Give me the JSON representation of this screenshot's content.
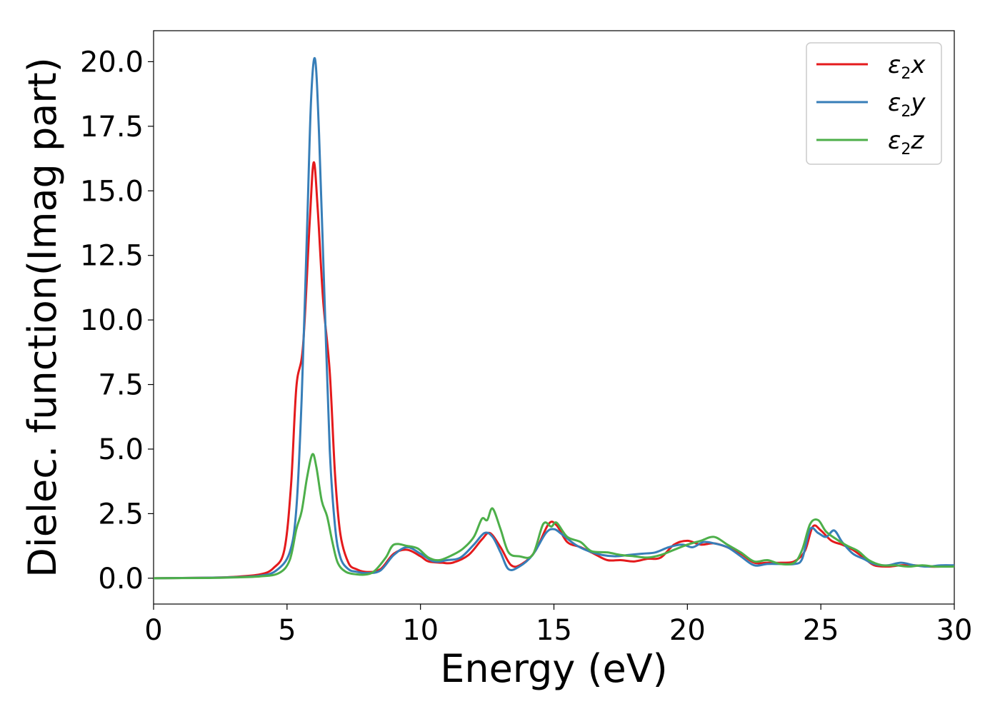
{
  "chart_data": {
    "type": "line",
    "xlabel": "Energy (eV)",
    "ylabel": "Dielec. function(Imag part)",
    "xlim": [
      0,
      30
    ],
    "ylim": [
      -1.0,
      21.2
    ],
    "xticks": [
      "0",
      "5",
      "10",
      "15",
      "20",
      "25",
      "30"
    ],
    "xtick_values": [
      0,
      5,
      10,
      15,
      20,
      25,
      30
    ],
    "yticks": [
      "0.0",
      "2.5",
      "5.0",
      "7.5",
      "10.0",
      "12.5",
      "15.0",
      "17.5",
      "20.0"
    ],
    "ytick_values": [
      0,
      2.5,
      5.0,
      7.5,
      10.0,
      12.5,
      15.0,
      17.5,
      20.0
    ],
    "grid": false,
    "legend_position": "top-right",
    "series": [
      {
        "name": "ε2x",
        "legend_main": "ε",
        "legend_sub": "2",
        "legend_var": "x",
        "color": "#e41a1c",
        "points": [
          [
            0,
            0
          ],
          [
            2,
            0.02
          ],
          [
            3,
            0.05
          ],
          [
            4,
            0.15
          ],
          [
            4.5,
            0.4
          ],
          [
            4.9,
            1.1
          ],
          [
            5.15,
            3.6
          ],
          [
            5.35,
            7.4
          ],
          [
            5.6,
            9.0
          ],
          [
            5.85,
            13.8
          ],
          [
            6.0,
            16.1
          ],
          [
            6.15,
            14.3
          ],
          [
            6.35,
            10.8
          ],
          [
            6.6,
            8.0
          ],
          [
            6.8,
            4.0
          ],
          [
            7.0,
            1.7
          ],
          [
            7.3,
            0.6
          ],
          [
            7.6,
            0.35
          ],
          [
            8.0,
            0.24
          ],
          [
            8.5,
            0.35
          ],
          [
            9.0,
            0.95
          ],
          [
            9.5,
            1.1
          ],
          [
            10.0,
            0.85
          ],
          [
            10.3,
            0.65
          ],
          [
            10.8,
            0.6
          ],
          [
            11.2,
            0.6
          ],
          [
            11.8,
            0.9
          ],
          [
            12.3,
            1.5
          ],
          [
            12.6,
            1.75
          ],
          [
            13.0,
            1.2
          ],
          [
            13.4,
            0.5
          ],
          [
            13.8,
            0.55
          ],
          [
            14.3,
            1.05
          ],
          [
            14.8,
            2.1
          ],
          [
            15.1,
            2.05
          ],
          [
            15.5,
            1.4
          ],
          [
            16.0,
            1.2
          ],
          [
            16.5,
            0.95
          ],
          [
            17.0,
            0.7
          ],
          [
            17.5,
            0.7
          ],
          [
            18.0,
            0.65
          ],
          [
            18.5,
            0.75
          ],
          [
            19.0,
            0.8
          ],
          [
            19.5,
            1.3
          ],
          [
            20.0,
            1.45
          ],
          [
            20.5,
            1.3
          ],
          [
            21.0,
            1.35
          ],
          [
            21.5,
            1.2
          ],
          [
            22.0,
            0.95
          ],
          [
            22.5,
            0.6
          ],
          [
            23.0,
            0.6
          ],
          [
            23.5,
            0.6
          ],
          [
            24.0,
            0.65
          ],
          [
            24.4,
            1.05
          ],
          [
            24.7,
            2.0
          ],
          [
            25.0,
            1.85
          ],
          [
            25.4,
            1.45
          ],
          [
            25.8,
            1.3
          ],
          [
            26.2,
            1.1
          ],
          [
            26.6,
            0.8
          ],
          [
            27.0,
            0.5
          ],
          [
            27.5,
            0.45
          ],
          [
            28.0,
            0.5
          ],
          [
            28.5,
            0.5
          ],
          [
            29.0,
            0.45
          ],
          [
            29.5,
            0.45
          ],
          [
            30,
            0.5
          ]
        ]
      },
      {
        "name": "ε2y",
        "legend_main": "ε",
        "legend_sub": "2",
        "legend_var": "y",
        "color": "#377eb8",
        "points": [
          [
            0,
            0
          ],
          [
            2,
            0.02
          ],
          [
            3,
            0.04
          ],
          [
            4,
            0.1
          ],
          [
            4.6,
            0.3
          ],
          [
            5.1,
            1.0
          ],
          [
            5.35,
            2.7
          ],
          [
            5.55,
            7.0
          ],
          [
            5.75,
            13.5
          ],
          [
            5.9,
            18.5
          ],
          [
            6.05,
            20.1
          ],
          [
            6.2,
            17.2
          ],
          [
            6.4,
            11.0
          ],
          [
            6.6,
            5.0
          ],
          [
            6.8,
            2.0
          ],
          [
            7.0,
            0.8
          ],
          [
            7.3,
            0.35
          ],
          [
            7.6,
            0.25
          ],
          [
            8.0,
            0.2
          ],
          [
            8.5,
            0.3
          ],
          [
            9.0,
            0.9
          ],
          [
            9.5,
            1.2
          ],
          [
            10.0,
            0.95
          ],
          [
            10.5,
            0.65
          ],
          [
            11.0,
            0.7
          ],
          [
            11.5,
            0.8
          ],
          [
            12.0,
            1.3
          ],
          [
            12.4,
            1.75
          ],
          [
            12.7,
            1.6
          ],
          [
            13.0,
            1.0
          ],
          [
            13.3,
            0.35
          ],
          [
            13.7,
            0.45
          ],
          [
            14.2,
            0.9
          ],
          [
            14.7,
            1.75
          ],
          [
            15.0,
            1.9
          ],
          [
            15.3,
            1.7
          ],
          [
            15.8,
            1.3
          ],
          [
            16.3,
            1.05
          ],
          [
            16.8,
            0.9
          ],
          [
            17.3,
            0.85
          ],
          [
            17.8,
            0.9
          ],
          [
            18.3,
            0.95
          ],
          [
            18.8,
            1.0
          ],
          [
            19.3,
            1.2
          ],
          [
            19.8,
            1.3
          ],
          [
            20.2,
            1.2
          ],
          [
            20.6,
            1.4
          ],
          [
            21.0,
            1.35
          ],
          [
            21.5,
            1.2
          ],
          [
            22.0,
            0.85
          ],
          [
            22.5,
            0.5
          ],
          [
            23.0,
            0.55
          ],
          [
            23.5,
            0.55
          ],
          [
            24.0,
            0.55
          ],
          [
            24.3,
            0.75
          ],
          [
            24.6,
            1.9
          ],
          [
            24.9,
            1.75
          ],
          [
            25.2,
            1.6
          ],
          [
            25.5,
            1.85
          ],
          [
            25.8,
            1.4
          ],
          [
            26.2,
            0.95
          ],
          [
            26.6,
            0.75
          ],
          [
            27.0,
            0.55
          ],
          [
            27.5,
            0.5
          ],
          [
            28.0,
            0.6
          ],
          [
            28.5,
            0.5
          ],
          [
            29.0,
            0.45
          ],
          [
            29.5,
            0.5
          ],
          [
            30,
            0.5
          ]
        ]
      },
      {
        "name": "ε2z",
        "legend_main": "ε",
        "legend_sub": "2",
        "legend_var": "z",
        "color": "#4daf4a",
        "points": [
          [
            0,
            0
          ],
          [
            2,
            0.01
          ],
          [
            3,
            0.03
          ],
          [
            4,
            0.07
          ],
          [
            4.7,
            0.2
          ],
          [
            5.1,
            0.7
          ],
          [
            5.35,
            1.9
          ],
          [
            5.55,
            2.6
          ],
          [
            5.75,
            3.9
          ],
          [
            5.95,
            4.8
          ],
          [
            6.1,
            4.3
          ],
          [
            6.3,
            3.0
          ],
          [
            6.5,
            2.4
          ],
          [
            6.7,
            1.4
          ],
          [
            6.9,
            0.6
          ],
          [
            7.2,
            0.25
          ],
          [
            7.6,
            0.15
          ],
          [
            8.0,
            0.15
          ],
          [
            8.3,
            0.3
          ],
          [
            8.7,
            0.8
          ],
          [
            9.0,
            1.3
          ],
          [
            9.5,
            1.25
          ],
          [
            9.9,
            1.15
          ],
          [
            10.3,
            0.8
          ],
          [
            10.7,
            0.7
          ],
          [
            11.2,
            0.9
          ],
          [
            11.6,
            1.15
          ],
          [
            12.0,
            1.6
          ],
          [
            12.3,
            2.3
          ],
          [
            12.5,
            2.25
          ],
          [
            12.7,
            2.7
          ],
          [
            13.0,
            1.9
          ],
          [
            13.3,
            1.0
          ],
          [
            13.7,
            0.85
          ],
          [
            14.2,
            0.9
          ],
          [
            14.6,
            2.1
          ],
          [
            14.9,
            2.0
          ],
          [
            15.1,
            2.15
          ],
          [
            15.5,
            1.6
          ],
          [
            16.0,
            1.4
          ],
          [
            16.4,
            1.05
          ],
          [
            17.0,
            1.0
          ],
          [
            17.5,
            0.9
          ],
          [
            18.0,
            0.85
          ],
          [
            18.5,
            0.8
          ],
          [
            19.0,
            0.9
          ],
          [
            19.5,
            1.1
          ],
          [
            20.0,
            1.3
          ],
          [
            20.5,
            1.45
          ],
          [
            21.0,
            1.6
          ],
          [
            21.5,
            1.3
          ],
          [
            22.0,
            1.0
          ],
          [
            22.5,
            0.65
          ],
          [
            23.0,
            0.7
          ],
          [
            23.5,
            0.55
          ],
          [
            24.0,
            0.6
          ],
          [
            24.3,
            1.1
          ],
          [
            24.6,
            2.1
          ],
          [
            24.9,
            2.25
          ],
          [
            25.2,
            1.8
          ],
          [
            25.6,
            1.5
          ],
          [
            26.0,
            1.25
          ],
          [
            26.4,
            1.05
          ],
          [
            26.8,
            0.7
          ],
          [
            27.3,
            0.5
          ],
          [
            27.8,
            0.5
          ],
          [
            28.3,
            0.45
          ],
          [
            28.8,
            0.5
          ],
          [
            29.3,
            0.45
          ],
          [
            30,
            0.45
          ]
        ]
      }
    ]
  }
}
